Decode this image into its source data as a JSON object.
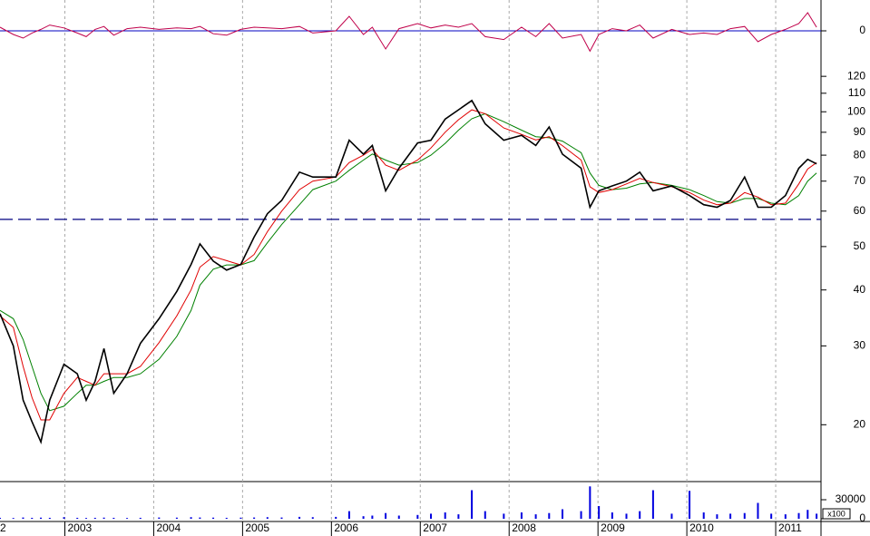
{
  "chart_data": [
    {
      "type": "line",
      "xlim": [
        2002.27,
        2011.51
      ],
      "ylim": [
        -40,
        40
      ],
      "yticks": [
        0
      ],
      "zero_color": "#0000c0",
      "x": [
        2002.27,
        2002.42,
        2002.53,
        2002.63,
        2002.73,
        2002.83,
        2002.99,
        2003.14,
        2003.24,
        2003.34,
        2003.44,
        2003.55,
        2003.7,
        2003.85,
        2004.06,
        2004.26,
        2004.42,
        2004.52,
        2004.67,
        2004.82,
        2004.98,
        2005.13,
        2005.28,
        2005.44,
        2005.64,
        2005.79,
        2006.05,
        2006.2,
        2006.36,
        2006.46,
        2006.61,
        2006.76,
        2006.97,
        2007.12,
        2007.28,
        2007.43,
        2007.58,
        2007.73,
        2007.94,
        2008.14,
        2008.3,
        2008.45,
        2008.6,
        2008.81,
        2008.91,
        2009.01,
        2009.16,
        2009.32,
        2009.47,
        2009.62,
        2009.83,
        2010.03,
        2010.19,
        2010.34,
        2010.49,
        2010.65,
        2010.8,
        2010.95,
        2011.11,
        2011.26,
        2011.36,
        2011.46
      ],
      "series": [
        {
          "color": "#c0004a",
          "values": [
            5,
            -5,
            -10,
            -3,
            2,
            8,
            4,
            -3,
            -8,
            2,
            6,
            -6,
            3,
            5,
            2,
            4,
            3,
            6,
            -4,
            -6,
            2,
            5,
            4,
            3,
            6,
            -3,
            0,
            20,
            -5,
            5,
            -25,
            3,
            10,
            4,
            8,
            5,
            10,
            -8,
            -12,
            5,
            -8,
            10,
            -10,
            -5,
            -28,
            -5,
            3,
            0,
            8,
            -10,
            2,
            -5,
            -3,
            -5,
            3,
            6,
            -15,
            -5,
            2,
            10,
            25,
            5
          ]
        }
      ]
    },
    {
      "type": "line",
      "log": true,
      "xlim": [
        2002.27,
        2011.51
      ],
      "ylim": [
        15,
        127
      ],
      "yticks": [
        20,
        30,
        40,
        50,
        60,
        70,
        80,
        90,
        100,
        110,
        120
      ],
      "xticks": [
        {
          "value": 2002,
          "label": "2"
        },
        2003,
        2004,
        2005,
        2006,
        2007,
        2008,
        2009,
        2010,
        2011
      ],
      "hline": 57.5,
      "hline_color": "#000080",
      "x": [
        2002.27,
        2002.42,
        2002.53,
        2002.63,
        2002.73,
        2002.83,
        2002.99,
        2003.14,
        2003.24,
        2003.34,
        2003.44,
        2003.55,
        2003.7,
        2003.85,
        2004.06,
        2004.26,
        2004.42,
        2004.52,
        2004.67,
        2004.82,
        2004.98,
        2005.13,
        2005.28,
        2005.44,
        2005.64,
        2005.79,
        2006.05,
        2006.2,
        2006.36,
        2006.46,
        2006.61,
        2006.76,
        2006.97,
        2007.12,
        2007.28,
        2007.43,
        2007.58,
        2007.73,
        2007.94,
        2008.14,
        2008.3,
        2008.45,
        2008.6,
        2008.81,
        2008.91,
        2009.01,
        2009.16,
        2009.32,
        2009.47,
        2009.62,
        2009.83,
        2010.03,
        2010.19,
        2010.34,
        2010.49,
        2010.65,
        2010.8,
        2010.95,
        2011.11,
        2011.26,
        2011.36,
        2011.46
      ],
      "series": [
        {
          "color": "#008000",
          "values": [
            36,
            34.5,
            31,
            27,
            23.5,
            21.5,
            22,
            23.5,
            24.5,
            24.5,
            25,
            25.5,
            25.5,
            26,
            28,
            31.5,
            36,
            41,
            44.5,
            45.5,
            45.5,
            46.5,
            51,
            56,
            62,
            67,
            70,
            74,
            78,
            80.5,
            78,
            76,
            77,
            80,
            85,
            91,
            96.5,
            99,
            95,
            91,
            88,
            87.5,
            86,
            81,
            73,
            68.5,
            67,
            67.5,
            69,
            69.5,
            68.5,
            67,
            65,
            63,
            62.5,
            64,
            64,
            62.5,
            62,
            65,
            70,
            73
          ]
        },
        {
          "color": "#e00000",
          "values": [
            35,
            33,
            27,
            23,
            20.5,
            20.5,
            23.5,
            25.5,
            25,
            24.5,
            26,
            26,
            26,
            27,
            30.5,
            35,
            40,
            45,
            47.5,
            46.5,
            45.5,
            48,
            54,
            60,
            67,
            70,
            71.5,
            77,
            80,
            82.5,
            76,
            74,
            78,
            83,
            90,
            96,
            101,
            99,
            92,
            89,
            86.5,
            88,
            84,
            78,
            68,
            66,
            67,
            69,
            71,
            69.5,
            68,
            66,
            63.5,
            62,
            62.5,
            66,
            64.5,
            62,
            62.5,
            69,
            74.5,
            77
          ]
        },
        {
          "color": "#000000",
          "values": [
            35.4,
            30,
            22.7,
            20.3,
            18.3,
            22.7,
            27.3,
            26,
            22.7,
            25,
            29.6,
            23.5,
            26,
            30.4,
            34.5,
            39.7,
            45.6,
            50.7,
            46.4,
            44.3,
            45.6,
            52.5,
            59.2,
            63.4,
            73.3,
            71.5,
            71.5,
            86.4,
            80.4,
            84.1,
            66.6,
            74.8,
            85.2,
            86.4,
            96.3,
            101,
            106,
            94,
            86.4,
            88.6,
            84.1,
            92.5,
            80.4,
            74.8,
            61.2,
            66.6,
            68.3,
            70,
            73.3,
            66.6,
            68.3,
            65,
            62,
            61.2,
            63.4,
            71.5,
            61.2,
            61.2,
            65,
            74.8,
            78.3,
            76.5
          ]
        }
      ]
    },
    {
      "type": "bar",
      "xlim": [
        2002.27,
        2011.51
      ],
      "ylim": [
        0,
        60000
      ],
      "yticks": [
        0,
        30000
      ],
      "unit_label": "x100",
      "color": "#0000e0",
      "x": [
        2002.27,
        2002.42,
        2002.53,
        2002.63,
        2002.73,
        2002.83,
        2002.99,
        2003.14,
        2003.24,
        2003.34,
        2003.44,
        2003.55,
        2003.7,
        2003.85,
        2004.06,
        2004.26,
        2004.42,
        2004.52,
        2004.67,
        2004.82,
        2004.98,
        2005.13,
        2005.28,
        2005.44,
        2005.64,
        2005.79,
        2006.05,
        2006.2,
        2006.36,
        2006.46,
        2006.61,
        2006.76,
        2006.97,
        2007.12,
        2007.28,
        2007.43,
        2007.58,
        2007.73,
        2007.94,
        2008.14,
        2008.3,
        2008.45,
        2008.6,
        2008.81,
        2008.91,
        2009.01,
        2009.16,
        2009.32,
        2009.47,
        2009.62,
        2009.83,
        2010.03,
        2010.19,
        2010.34,
        2010.49,
        2010.65,
        2010.8,
        2010.95,
        2011.11,
        2011.26,
        2011.36,
        2011.46
      ],
      "values": [
        1500,
        1200,
        2000,
        1500,
        1800,
        1500,
        2500,
        1500,
        1200,
        1500,
        1800,
        1500,
        1200,
        1500,
        2000,
        1800,
        2500,
        2000,
        1800,
        1500,
        1800,
        2000,
        2500,
        2000,
        3000,
        2500,
        3000,
        12000,
        4000,
        5000,
        9000,
        5000,
        6000,
        8000,
        10000,
        7000,
        45000,
        12000,
        8000,
        10000,
        7000,
        9000,
        15000,
        12000,
        51000,
        20000,
        10000,
        8000,
        12000,
        45000,
        8000,
        44000,
        10000,
        7000,
        8000,
        9000,
        25000,
        8000,
        7000,
        9000,
        14000,
        8000
      ]
    }
  ]
}
